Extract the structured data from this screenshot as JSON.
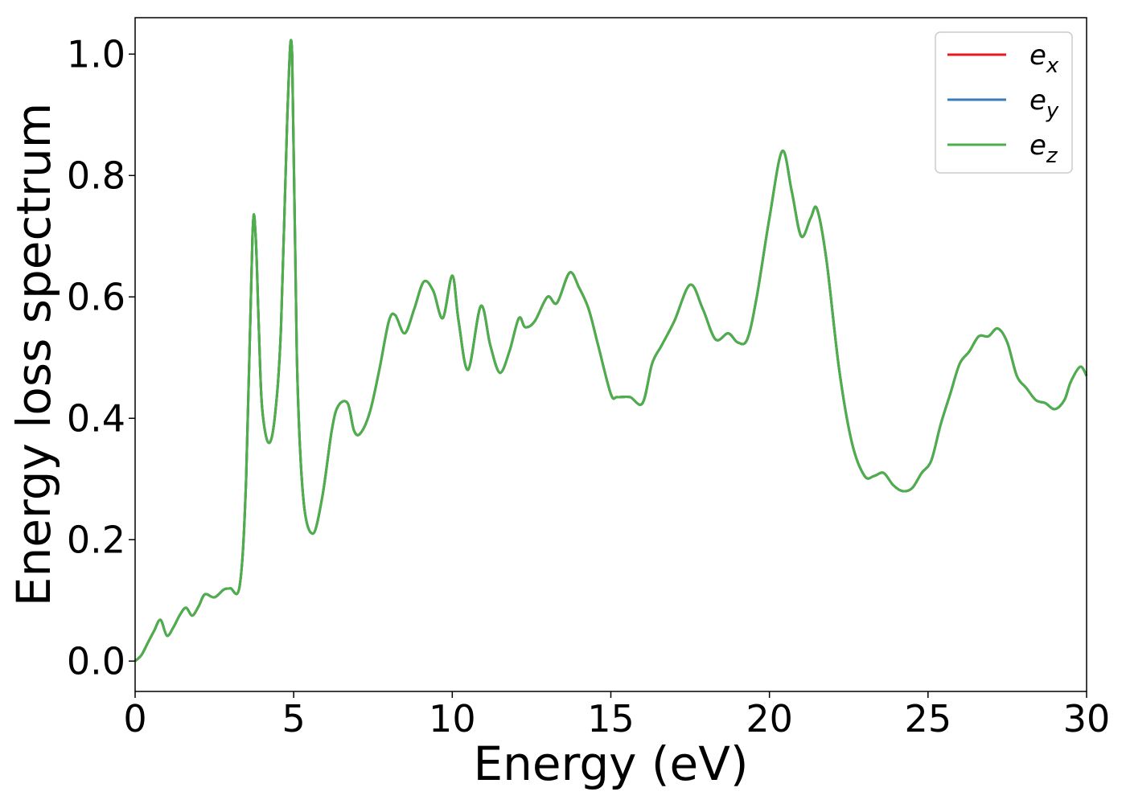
{
  "chart_data": {
    "type": "line",
    "title": "",
    "xlabel": "Energy (eV)",
    "ylabel": "Energy loss spectrum",
    "xlim": [
      0,
      30
    ],
    "ylim": [
      -0.05,
      1.06
    ],
    "xticks": [
      0,
      5,
      10,
      15,
      20,
      25,
      30
    ],
    "xtick_labels": [
      "0",
      "5",
      "10",
      "15",
      "20",
      "25",
      "30"
    ],
    "yticks": [
      0.0,
      0.2,
      0.4,
      0.6,
      0.8,
      1.0
    ],
    "ytick_labels": [
      "0.0",
      "0.2",
      "0.4",
      "0.6",
      "0.8",
      "1.0"
    ],
    "grid": false,
    "legend_position": "top-right",
    "x": [
      0,
      0.2,
      0.4,
      0.6,
      0.8,
      1.0,
      1.2,
      1.4,
      1.6,
      1.8,
      2.0,
      2.2,
      2.5,
      2.8,
      3.0,
      3.3,
      3.5,
      3.7,
      3.8,
      3.9,
      4.0,
      4.2,
      4.4,
      4.6,
      4.8,
      4.95,
      5.1,
      5.3,
      5.6,
      5.9,
      6.2,
      6.4,
      6.7,
      6.9,
      7.1,
      7.4,
      7.7,
      8.0,
      8.2,
      8.5,
      8.8,
      9.1,
      9.4,
      9.7,
      10.0,
      10.2,
      10.5,
      10.9,
      11.2,
      11.5,
      11.8,
      12.1,
      12.3,
      12.6,
      13.0,
      13.3,
      13.7,
      14.0,
      14.3,
      14.6,
      15.0,
      15.2,
      15.6,
      16.0,
      16.3,
      16.6,
      17.0,
      17.5,
      17.9,
      18.3,
      18.7,
      19.0,
      19.3,
      19.6,
      20.0,
      20.4,
      20.7,
      21.0,
      21.3,
      21.5,
      21.8,
      22.2,
      22.6,
      23.0,
      23.3,
      23.6,
      23.9,
      24.2,
      24.5,
      24.8,
      25.1,
      25.4,
      25.7,
      26.0,
      26.3,
      26.6,
      26.9,
      27.2,
      27.5,
      27.8,
      28.1,
      28.4,
      28.7,
      29.0,
      29.3,
      29.5,
      29.8,
      30.0
    ],
    "series": [
      {
        "name": "e_x",
        "color": "#e41a1c",
        "values": [
          0.0,
          0.01,
          0.03,
          0.05,
          0.068,
          0.042,
          0.055,
          0.075,
          0.088,
          0.075,
          0.09,
          0.11,
          0.105,
          0.118,
          0.12,
          0.125,
          0.3,
          0.7,
          0.7,
          0.55,
          0.42,
          0.36,
          0.4,
          0.55,
          0.9,
          1.0,
          0.5,
          0.27,
          0.21,
          0.27,
          0.38,
          0.42,
          0.425,
          0.38,
          0.375,
          0.41,
          0.48,
          0.56,
          0.57,
          0.54,
          0.58,
          0.625,
          0.61,
          0.565,
          0.635,
          0.56,
          0.48,
          0.585,
          0.52,
          0.475,
          0.51,
          0.565,
          0.55,
          0.56,
          0.6,
          0.59,
          0.64,
          0.615,
          0.58,
          0.52,
          0.44,
          0.435,
          0.435,
          0.425,
          0.49,
          0.52,
          0.56,
          0.62,
          0.58,
          0.53,
          0.54,
          0.525,
          0.53,
          0.6,
          0.73,
          0.84,
          0.775,
          0.7,
          0.73,
          0.745,
          0.66,
          0.48,
          0.36,
          0.305,
          0.305,
          0.31,
          0.29,
          0.28,
          0.285,
          0.31,
          0.33,
          0.39,
          0.44,
          0.49,
          0.51,
          0.535,
          0.535,
          0.548,
          0.525,
          0.47,
          0.45,
          0.43,
          0.425,
          0.415,
          0.43,
          0.46,
          0.485,
          0.47
        ]
      },
      {
        "name": "e_y",
        "color": "#377eb8",
        "values": [
          0.0,
          0.01,
          0.03,
          0.05,
          0.068,
          0.042,
          0.055,
          0.075,
          0.088,
          0.075,
          0.09,
          0.11,
          0.105,
          0.118,
          0.12,
          0.125,
          0.3,
          0.7,
          0.7,
          0.55,
          0.42,
          0.36,
          0.4,
          0.55,
          0.9,
          1.0,
          0.5,
          0.27,
          0.21,
          0.27,
          0.38,
          0.42,
          0.425,
          0.38,
          0.375,
          0.41,
          0.48,
          0.56,
          0.57,
          0.54,
          0.58,
          0.625,
          0.61,
          0.565,
          0.635,
          0.56,
          0.48,
          0.585,
          0.52,
          0.475,
          0.51,
          0.565,
          0.55,
          0.56,
          0.6,
          0.59,
          0.64,
          0.615,
          0.58,
          0.52,
          0.44,
          0.435,
          0.435,
          0.425,
          0.49,
          0.52,
          0.56,
          0.62,
          0.58,
          0.53,
          0.54,
          0.525,
          0.53,
          0.6,
          0.73,
          0.84,
          0.775,
          0.7,
          0.73,
          0.745,
          0.66,
          0.48,
          0.36,
          0.305,
          0.305,
          0.31,
          0.29,
          0.28,
          0.285,
          0.31,
          0.33,
          0.39,
          0.44,
          0.49,
          0.51,
          0.535,
          0.535,
          0.548,
          0.525,
          0.47,
          0.45,
          0.43,
          0.425,
          0.415,
          0.43,
          0.46,
          0.485,
          0.47
        ]
      },
      {
        "name": "e_z",
        "color": "#4daf4a",
        "values": [
          0.0,
          0.01,
          0.03,
          0.05,
          0.068,
          0.042,
          0.055,
          0.075,
          0.088,
          0.075,
          0.09,
          0.11,
          0.105,
          0.118,
          0.12,
          0.125,
          0.3,
          0.7,
          0.7,
          0.55,
          0.42,
          0.36,
          0.4,
          0.55,
          0.9,
          1.0,
          0.5,
          0.27,
          0.21,
          0.27,
          0.38,
          0.42,
          0.425,
          0.38,
          0.375,
          0.41,
          0.48,
          0.56,
          0.57,
          0.54,
          0.58,
          0.625,
          0.61,
          0.565,
          0.635,
          0.56,
          0.48,
          0.585,
          0.52,
          0.475,
          0.51,
          0.565,
          0.55,
          0.56,
          0.6,
          0.59,
          0.64,
          0.615,
          0.58,
          0.52,
          0.44,
          0.435,
          0.435,
          0.425,
          0.49,
          0.52,
          0.56,
          0.62,
          0.58,
          0.53,
          0.54,
          0.525,
          0.53,
          0.6,
          0.73,
          0.84,
          0.775,
          0.7,
          0.73,
          0.745,
          0.66,
          0.48,
          0.36,
          0.305,
          0.305,
          0.31,
          0.29,
          0.28,
          0.285,
          0.31,
          0.33,
          0.39,
          0.44,
          0.49,
          0.51,
          0.535,
          0.535,
          0.548,
          0.525,
          0.47,
          0.45,
          0.43,
          0.425,
          0.415,
          0.43,
          0.46,
          0.485,
          0.47
        ]
      }
    ],
    "legend": [
      {
        "base": "e",
        "sub": "x",
        "color": "#e41a1c"
      },
      {
        "base": "e",
        "sub": "y",
        "color": "#377eb8"
      },
      {
        "base": "e",
        "sub": "z",
        "color": "#4daf4a"
      }
    ]
  }
}
